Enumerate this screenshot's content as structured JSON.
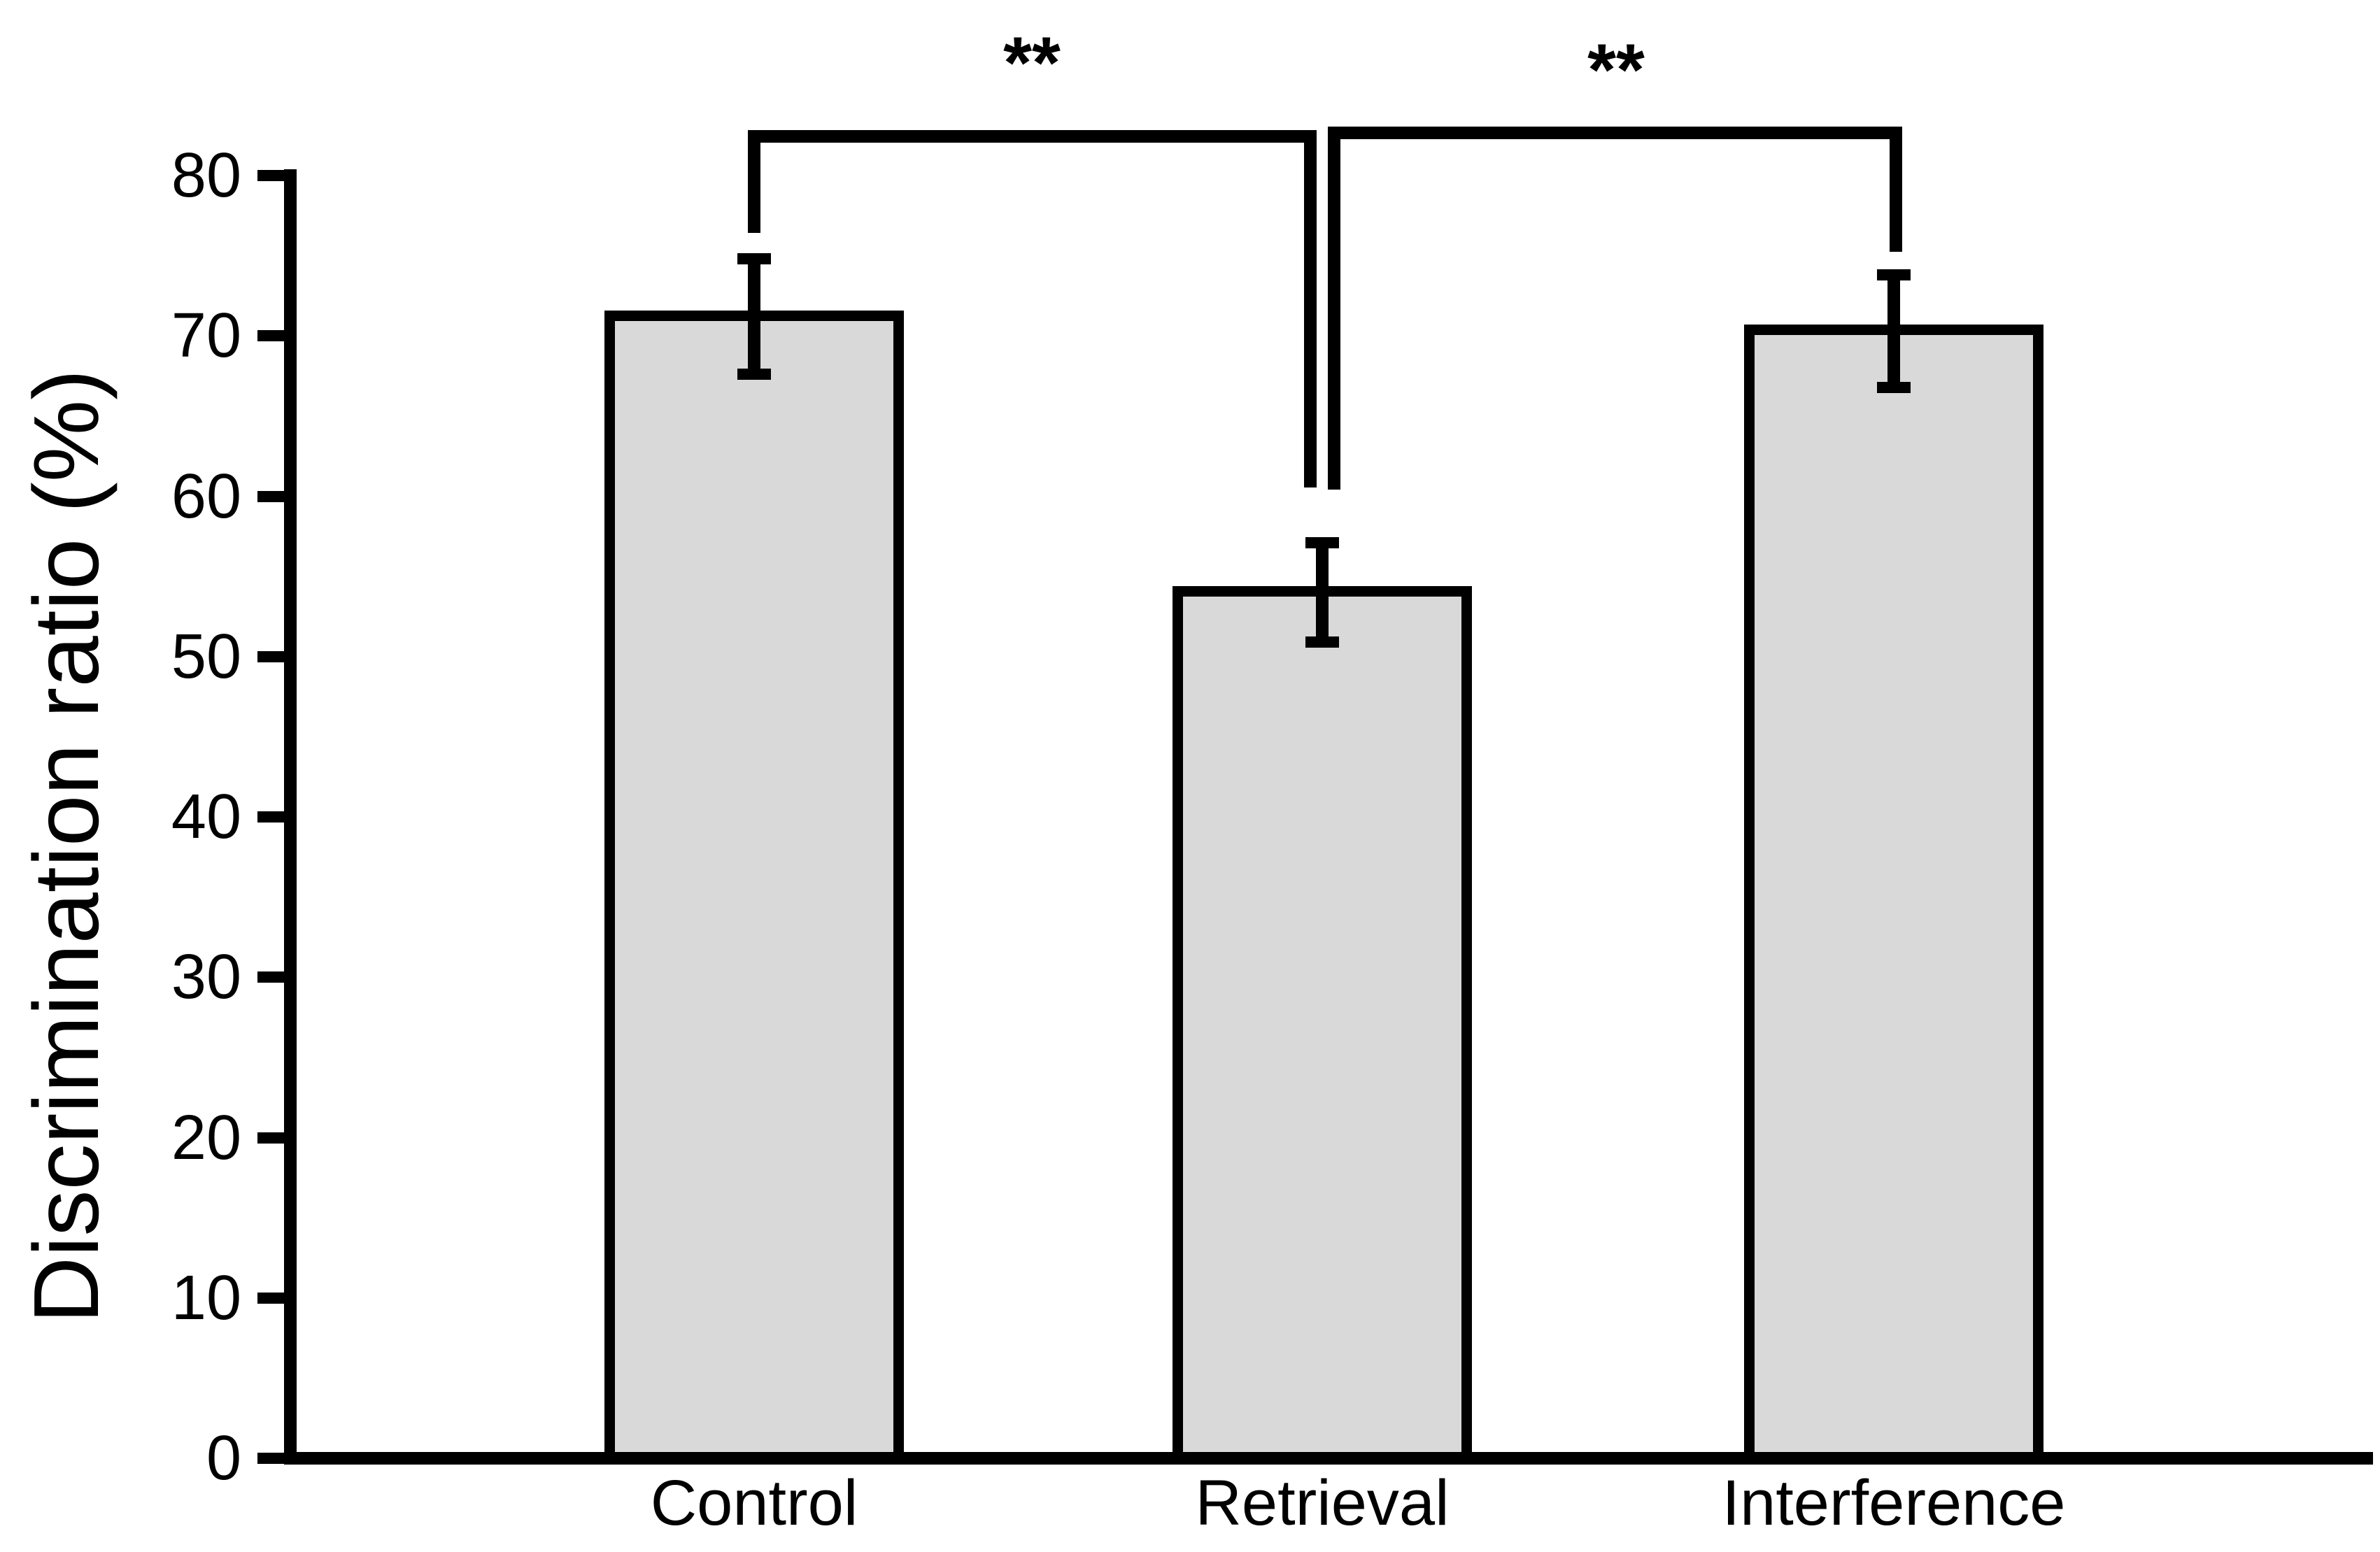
{
  "figure": {
    "background": "#ffffff",
    "text_color": "#000000"
  },
  "chart_data": {
    "type": "bar",
    "title": "",
    "categories": [
      "Control",
      "Retrieval",
      "Interference"
    ],
    "values": [
      71.2,
      54.0,
      70.3
    ],
    "error_bars": [
      3.6,
      3.1,
      3.5
    ],
    "xlabel": "",
    "ylabel": "Discrimination ratio (%)",
    "ylim": [
      0,
      80
    ],
    "yticks": [
      0,
      10,
      20,
      30,
      40,
      50,
      60,
      70,
      80
    ],
    "grid": false,
    "legend": null,
    "bar_fill": "#d9d9d9",
    "bar_stroke": "#000000",
    "significance_brackets": [
      {
        "from": "Control",
        "to": "Retrieval",
        "label": "**"
      },
      {
        "from": "Retrieval",
        "to": "Interference",
        "label": "**"
      }
    ]
  }
}
